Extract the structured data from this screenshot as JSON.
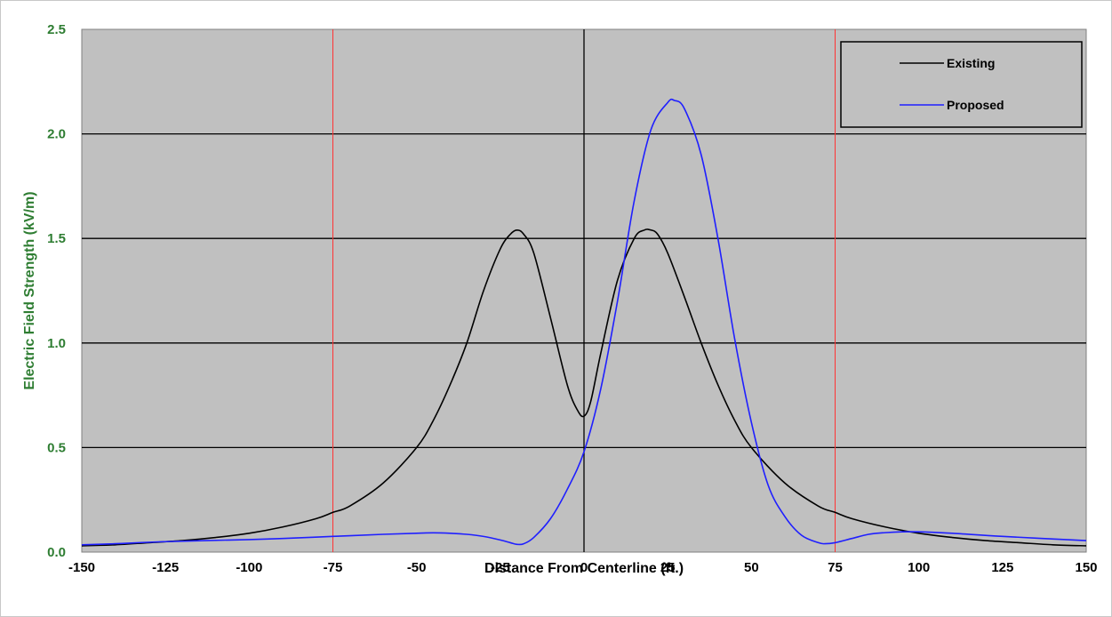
{
  "chart_data": {
    "type": "line",
    "title": "",
    "xlabel": "Distance From Centerline (ft.)",
    "ylabel": "Electric Field Strength (kV/m)",
    "xlim": [
      -150,
      150
    ],
    "ylim": [
      0,
      2.5
    ],
    "x_ticks": [
      "-150",
      "-125",
      "-100",
      "-75",
      "-50",
      "-25",
      "0",
      "25",
      "50",
      "75",
      "100",
      "125",
      "150"
    ],
    "y_ticks": [
      "0.0",
      "0.5",
      "1.0",
      "1.5",
      "2.0",
      "2.5"
    ],
    "grid": "horizontal",
    "plot_background": "#c0c0c0",
    "legend_position": "top-right",
    "reference_lines_x": [
      -75,
      75
    ],
    "reference_line_color": "#ff3333",
    "zero_line_x": 0,
    "series": [
      {
        "name": "Existing",
        "color": "#000000",
        "x": [
          -150,
          -140,
          -130,
          -120,
          -110,
          -100,
          -90,
          -80,
          -75,
          -70,
          -60,
          -50,
          -45,
          -40,
          -35,
          -30,
          -25,
          -22,
          -20,
          -18,
          -15,
          -10,
          -5,
          -2,
          0,
          2,
          5,
          10,
          15,
          18,
          20,
          22,
          25,
          30,
          35,
          40,
          45,
          50,
          60,
          70,
          75,
          80,
          90,
          100,
          110,
          120,
          130,
          140,
          150
        ],
        "y": [
          0.03,
          0.035,
          0.045,
          0.055,
          0.07,
          0.09,
          0.12,
          0.16,
          0.19,
          0.22,
          0.33,
          0.5,
          0.63,
          0.8,
          1.0,
          1.25,
          1.45,
          1.52,
          1.54,
          1.52,
          1.43,
          1.12,
          0.8,
          0.68,
          0.65,
          0.72,
          0.95,
          1.3,
          1.5,
          1.54,
          1.54,
          1.52,
          1.43,
          1.22,
          1.0,
          0.8,
          0.63,
          0.5,
          0.33,
          0.22,
          0.19,
          0.16,
          0.12,
          0.09,
          0.07,
          0.055,
          0.045,
          0.035,
          0.03
        ]
      },
      {
        "name": "Proposed",
        "color": "#1f1fff",
        "x": [
          -150,
          -140,
          -125,
          -100,
          -90,
          -75,
          -60,
          -50,
          -45,
          -40,
          -35,
          -30,
          -25,
          -22,
          -20,
          -18,
          -15,
          -10,
          -5,
          0,
          5,
          10,
          15,
          20,
          25,
          27,
          30,
          35,
          40,
          45,
          50,
          55,
          60,
          65,
          70,
          72,
          75,
          80,
          85,
          90,
          95,
          100,
          110,
          125,
          150
        ],
        "y": [
          0.035,
          0.04,
          0.05,
          0.06,
          0.065,
          0.075,
          0.085,
          0.09,
          0.092,
          0.09,
          0.085,
          0.075,
          0.058,
          0.045,
          0.037,
          0.04,
          0.07,
          0.16,
          0.3,
          0.48,
          0.78,
          1.2,
          1.68,
          2.02,
          2.15,
          2.16,
          2.12,
          1.9,
          1.5,
          1.02,
          0.62,
          0.32,
          0.17,
          0.08,
          0.045,
          0.04,
          0.045,
          0.065,
          0.085,
          0.093,
          0.097,
          0.097,
          0.09,
          0.075,
          0.055
        ]
      }
    ]
  }
}
